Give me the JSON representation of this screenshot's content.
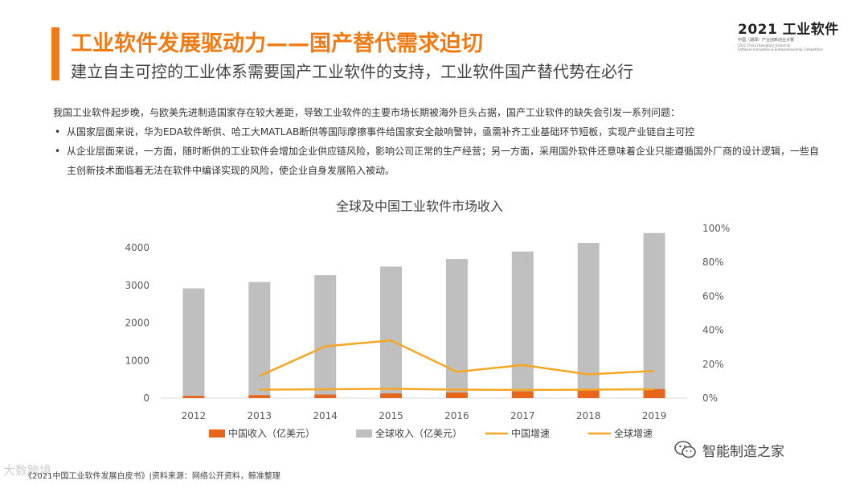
{
  "header": {
    "title": "工业软件发展驱动力——国产替代需求迫切",
    "subtitle": "建立自主可控的工业体系需要国产工业软件的支持，工业软件国产替代势在必行"
  },
  "logo": {
    "main": "2021 工业软件",
    "sub": "中国（湖潭）产业创新创业大赛",
    "en_line1": "2021 China (Xiangtan) Industrial",
    "en_line2": "Software Innovation & Entrepreneurship Competition"
  },
  "intro": {
    "paragraph": "我国工业软件起步晚，与欧美先进制造国家存在较大差距，导致工业软件的主要市场长期被海外巨头占据，国产工业软件的缺失会引发一系列问题：",
    "bullet_char": "•",
    "bullets": [
      "从国家层面来说，华为EDA软件断供、哈工大MATLAB断供等国际摩擦事件给国家安全敲响警钟，亟需补齐工业基础环节短板，实现产业链自主可控",
      "从企业层面来说，一方面，随时断供的工业软件会增加企业供应链风险，影响公司正常的生产经营；另一方面，采用国外软件还意味着企业只能遵循国外厂商的设计逻辑，一些自主创新技术面临着无法在软件中编译实现的风险，使企业自身发展陷入被动。"
    ]
  },
  "chart_data": {
    "type": "bar",
    "title": "全球及中国工业软件市场收入",
    "categories": [
      "2012",
      "2013",
      "2014",
      "2015",
      "2016",
      "2017",
      "2018",
      "2019"
    ],
    "y_left": {
      "min": 0,
      "max": 4000,
      "ticks": [
        0,
        1000,
        2000,
        3000,
        4000
      ]
    },
    "y_right": {
      "min": 0,
      "max": 100,
      "ticks": [
        "0%",
        "20%",
        "40%",
        "60%",
        "80%",
        "100%"
      ]
    },
    "series": [
      {
        "name": "中国收入（亿美元）",
        "kind": "bar",
        "axis": "left",
        "color": "#e8661c",
        "values": [
          60,
          80,
          95,
          125,
          150,
          180,
          205,
          240
        ]
      },
      {
        "name": "全球收入（亿美元）",
        "kind": "bar",
        "axis": "left",
        "color": "#bfbfbf",
        "values": [
          2920,
          3090,
          3270,
          3500,
          3700,
          3900,
          4130,
          4390
        ]
      },
      {
        "name": "中国增速",
        "kind": "line",
        "axis": "right",
        "color": "#f5a623",
        "values": [
          null,
          13,
          30.5,
          34,
          15.5,
          19.5,
          14,
          16
        ]
      },
      {
        "name": "全球增速",
        "kind": "line",
        "axis": "right",
        "color": "#f5a623",
        "values": [
          null,
          5,
          5.2,
          5.5,
          5,
          4.8,
          5,
          5.2
        ]
      }
    ],
    "legend_position": "bottom",
    "grid": false
  },
  "footer": {
    "source": "《2021中国工业软件发展白皮书》|资料来源：网络公开资料，鲸准整理",
    "watermark_left": "大数跨境",
    "wechat_name": "智能制造之家"
  }
}
